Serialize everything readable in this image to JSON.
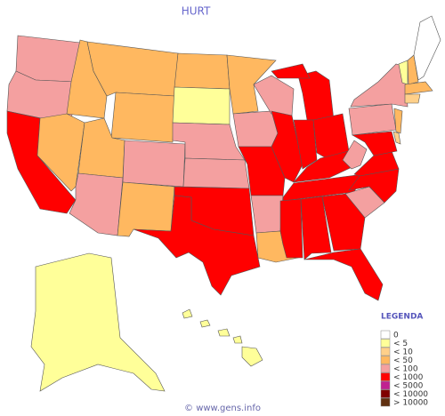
{
  "header": {
    "title": "HURT"
  },
  "legend": {
    "title": "LEGENDA",
    "items": [
      {
        "label": "0",
        "color": "#ffffff"
      },
      {
        "label": "< 5",
        "color": "#ffff99"
      },
      {
        "label": "< 10",
        "color": "#ffd08a"
      },
      {
        "label": "< 50",
        "color": "#ffb860"
      },
      {
        "label": "< 100",
        "color": "#f4a0a0"
      },
      {
        "label": "< 1000",
        "color": "#ff0000"
      },
      {
        "label": "< 5000",
        "color": "#c02090"
      },
      {
        "label": "< 10000",
        "color": "#800000"
      },
      {
        "label": "> 10000",
        "color": "#603010"
      }
    ]
  },
  "footer": {
    "text": "© www.gens.info"
  }
}
